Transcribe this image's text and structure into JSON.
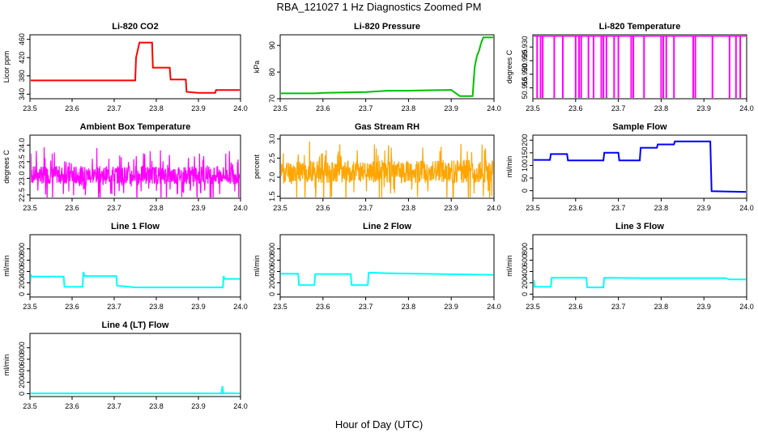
{
  "page": {
    "title": "RBA_121027  1 Hz Diagnostics Zoomed PM",
    "x_caption": "Hour of Day (UTC)"
  },
  "chart_data": [
    {
      "type": "line",
      "title": "Li-820 CO2",
      "ylabel": "Licor ppm",
      "color": "#ff0000",
      "xlim": [
        23.5,
        24.0
      ],
      "ylim": [
        330,
        470
      ],
      "xticks": [
        "23.5",
        "23.6",
        "23.7",
        "23.8",
        "23.9",
        "24.0"
      ],
      "yticks": [
        340,
        380,
        420,
        460
      ],
      "series": [
        {
          "x": [
            23.5,
            23.75,
            23.752,
            23.76,
            23.79,
            23.792,
            23.81,
            23.832,
            23.834,
            23.87,
            23.872,
            23.9,
            23.92,
            23.94,
            23.942,
            23.96,
            24.0
          ],
          "y": [
            370,
            370,
            420,
            453,
            453,
            398,
            398,
            398,
            372,
            372,
            345,
            343,
            343,
            343,
            349,
            349,
            349
          ]
        }
      ]
    },
    {
      "type": "line",
      "title": "Li-820 Pressure",
      "ylabel": "kPa",
      "color": "#00c000",
      "xlim": [
        23.5,
        24.0
      ],
      "ylim": [
        70,
        94
      ],
      "xticks": [
        "23.5",
        "23.6",
        "23.7",
        "23.8",
        "23.9",
        "24.0"
      ],
      "yticks": [
        70,
        80,
        90
      ],
      "series": [
        {
          "x": [
            23.5,
            23.58,
            23.6,
            23.7,
            23.75,
            23.8,
            23.85,
            23.9,
            23.92,
            23.95,
            23.955,
            23.96,
            23.965,
            23.97,
            23.975,
            24.0
          ],
          "y": [
            72,
            72,
            72.2,
            72.5,
            73,
            73,
            73.2,
            73.3,
            71,
            71,
            82,
            86,
            88,
            91,
            93,
            93
          ]
        }
      ]
    },
    {
      "type": "line",
      "title": "Li-820 Temperature",
      "ylabel": "degrees C",
      "color": "#ff00ff",
      "xlim": [
        23.5,
        24.0
      ],
      "ylim": [
        50.911,
        50.9345
      ],
      "xticks": [
        "23.5",
        "23.6",
        "23.7",
        "23.8",
        "23.9",
        "24.0"
      ],
      "yticks": [
        "50.915",
        "50.920",
        "50.925",
        "50.930"
      ],
      "baseline": 50.934,
      "spike_low": 50.911,
      "spikes_x": [
        23.51,
        23.518,
        23.523,
        23.55,
        23.57,
        23.6,
        23.608,
        23.613,
        23.63,
        23.642,
        23.66,
        23.665,
        23.672,
        23.69,
        23.7,
        23.73,
        23.735,
        23.76,
        23.8,
        23.805,
        23.812,
        23.83,
        23.875,
        23.88,
        23.92,
        23.96,
        23.975,
        23.985
      ]
    },
    {
      "type": "line",
      "title": "Ambient Box Temperature",
      "ylabel": "degrees C",
      "color": "#ff00ff",
      "xlim": [
        23.5,
        24.0
      ],
      "ylim": [
        22.4,
        24.3
      ],
      "xticks": [
        "23.5",
        "23.6",
        "23.7",
        "23.8",
        "23.9",
        "24.0"
      ],
      "yticks": [
        "22.5",
        "23.0",
        "23.5",
        "24.0"
      ],
      "noise": {
        "center": 23.1,
        "amp_low": 0.45,
        "amp_high": 0.85,
        "count": 700,
        "seed": 7
      }
    },
    {
      "type": "line",
      "title": "Gas Stream RH",
      "ylabel": "percent",
      "color": "#ffa500",
      "xlim": [
        23.5,
        24.0
      ],
      "ylim": [
        1.45,
        3.1
      ],
      "xticks": [
        "23.5",
        "23.6",
        "23.7",
        "23.8",
        "23.9",
        "24.0"
      ],
      "yticks": [
        "1.5",
        "2.0",
        "2.5",
        "3.0"
      ],
      "noise": {
        "center": 2.15,
        "amp_low": 0.5,
        "amp_high": 0.85,
        "count": 700,
        "seed": 11
      }
    },
    {
      "type": "line",
      "title": "Sample Flow",
      "ylabel": "ml/min",
      "color": "#0000ff",
      "xlim": [
        23.5,
        24.0
      ],
      "ylim": [
        -30,
        220
      ],
      "xticks": [
        "23.5",
        "23.6",
        "23.7",
        "23.8",
        "23.9",
        "24.0"
      ],
      "yticks": [
        0,
        50,
        100,
        150,
        200
      ],
      "series": [
        {
          "x": [
            23.5,
            23.54,
            23.542,
            23.58,
            23.582,
            23.665,
            23.667,
            23.7,
            23.702,
            23.75,
            23.752,
            23.79,
            23.792,
            23.83,
            23.832,
            23.915,
            23.918,
            24.0
          ],
          "y": [
            122,
            122,
            145,
            145,
            120,
            120,
            150,
            150,
            120,
            120,
            170,
            170,
            183,
            183,
            195,
            195,
            -2,
            -5
          ]
        }
      ]
    },
    {
      "type": "line",
      "title": "Line 1 Flow",
      "ylabel": "ml/min",
      "color": "#00ffff",
      "xlim": [
        23.5,
        24.0
      ],
      "ylim": [
        -50,
        1050
      ],
      "xticks": [
        "23.5",
        "23.6",
        "23.7",
        "23.8",
        "23.9",
        "24.0"
      ],
      "yticks": [
        0,
        200,
        400,
        600,
        800
      ],
      "series": [
        {
          "x": [
            23.5,
            23.502,
            23.504,
            23.58,
            23.582,
            23.625,
            23.627,
            23.63,
            23.705,
            23.707,
            23.75,
            23.958,
            23.96,
            23.962,
            24.0
          ],
          "y": [
            150,
            350,
            310,
            310,
            130,
            130,
            390,
            320,
            320,
            150,
            120,
            120,
            320,
            270,
            270
          ]
        }
      ]
    },
    {
      "type": "line",
      "title": "Line 2 Flow",
      "ylabel": "ml/min",
      "color": "#00ffff",
      "xlim": [
        23.5,
        24.0
      ],
      "ylim": [
        -50,
        1050
      ],
      "xticks": [
        "23.5",
        "23.6",
        "23.7",
        "23.8",
        "23.9",
        "24.0"
      ],
      "yticks": [
        0,
        200,
        400,
        600,
        800
      ],
      "series": [
        {
          "x": [
            23.5,
            23.542,
            23.544,
            23.58,
            23.582,
            23.665,
            23.667,
            23.705,
            23.707,
            23.75,
            24.0
          ],
          "y": [
            360,
            360,
            160,
            160,
            355,
            355,
            160,
            160,
            380,
            370,
            340
          ]
        }
      ]
    },
    {
      "type": "line",
      "title": "Line 3 Flow",
      "ylabel": "ml/min",
      "color": "#00ffff",
      "xlim": [
        23.5,
        24.0
      ],
      "ylim": [
        -50,
        1050
      ],
      "xticks": [
        "23.5",
        "23.6",
        "23.7",
        "23.8",
        "23.9",
        "24.0"
      ],
      "yticks": [
        0,
        200,
        400,
        600,
        800
      ],
      "series": [
        {
          "x": [
            23.5,
            23.502,
            23.504,
            23.542,
            23.544,
            23.625,
            23.627,
            23.665,
            23.667,
            23.75,
            23.95,
            23.96,
            24.0
          ],
          "y": [
            120,
            250,
            130,
            130,
            290,
            290,
            120,
            120,
            290,
            285,
            285,
            260,
            260
          ]
        }
      ]
    },
    {
      "type": "line",
      "title": "Line 4 (LT) Flow",
      "ylabel": "ml/min",
      "color": "#00ffff",
      "xlim": [
        23.5,
        24.0
      ],
      "ylim": [
        -50,
        1050
      ],
      "xticks": [
        "23.5",
        "23.6",
        "23.7",
        "23.8",
        "23.9",
        "24.0"
      ],
      "yticks": [
        0,
        200,
        400,
        600,
        800
      ],
      "series": [
        {
          "x": [
            23.5,
            23.955,
            23.957,
            23.959,
            23.961,
            24.0
          ],
          "y": [
            5,
            5,
            130,
            5,
            10,
            5
          ]
        }
      ]
    }
  ]
}
